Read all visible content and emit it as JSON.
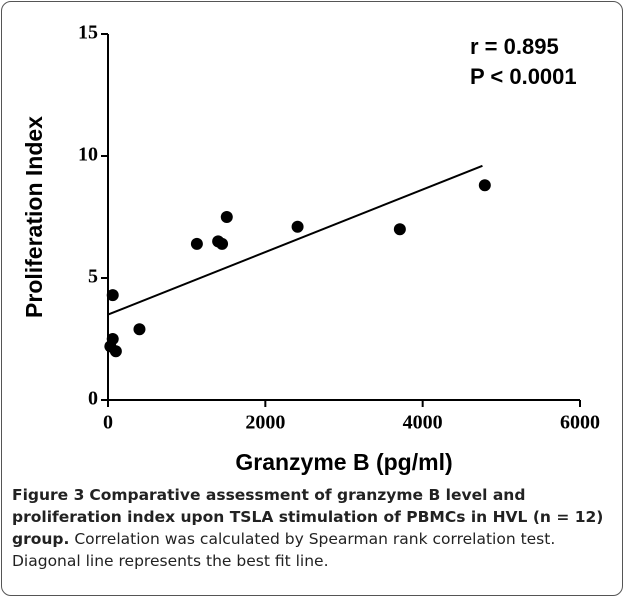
{
  "chart_data": {
    "type": "scatter",
    "xlabel": "Granzyme B (pg/ml)",
    "ylabel": "Proliferation Index",
    "annotations": [
      "r = 0.895",
      "P < 0.0001"
    ],
    "x": [
      60,
      60,
      30,
      100,
      400,
      1130,
      1400,
      1450,
      1510,
      2410,
      3710,
      4790
    ],
    "values": [
      4.3,
      2.5,
      2.2,
      2.0,
      2.9,
      6.4,
      6.5,
      6.4,
      7.5,
      7.1,
      7.0,
      8.8
    ],
    "color": "#000000",
    "fit_line": {
      "x": [
        0,
        4760
      ],
      "y": [
        3.5,
        9.6
      ]
    },
    "xlim": [
      0,
      6000
    ],
    "ylim": [
      0,
      15
    ],
    "xticks": [
      0,
      2000,
      4000,
      6000
    ],
    "yticks": [
      0,
      5,
      10,
      15
    ]
  },
  "caption": {
    "label": "Figure 3",
    "title": "Comparative assessment of granzyme B level and proliferation index upon TSLA stimulation of PBMCs in HVL (n = 12) group.",
    "text": "Correlation was calculated by Spearman rank correlation test. Diagonal line represents the best fit line."
  }
}
